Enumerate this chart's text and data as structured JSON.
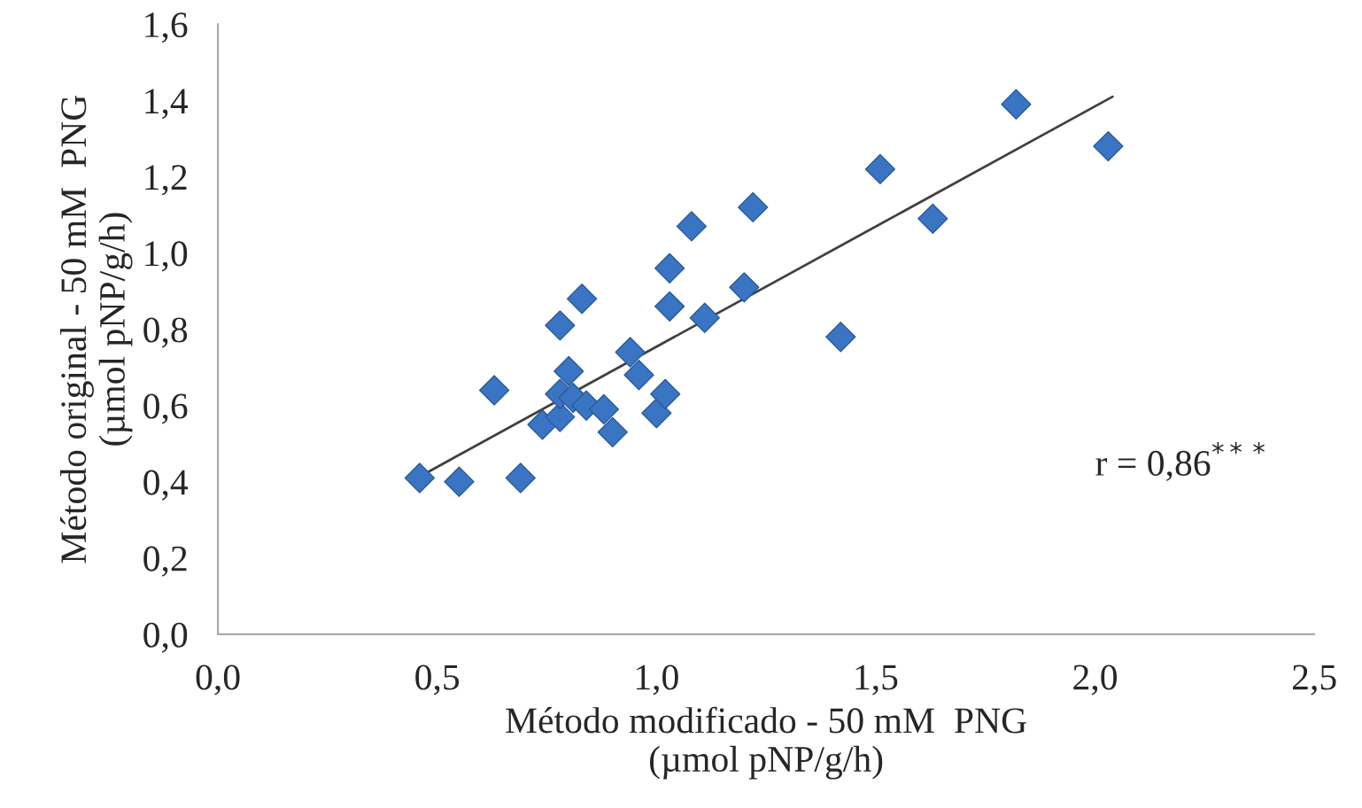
{
  "chart_data": {
    "type": "scatter",
    "xlabel": "Método modificado - 50 mM  PNG\n(µmol pNP/g/h)",
    "ylabel": "Método original - 50 mM  PNG\n(µmol pNP/g/h)",
    "annotations": [
      "r = 0,86$^{***}$"
    ],
    "grid": false,
    "xlim": [
      0,
      2.5
    ],
    "ylim": [
      0,
      1.6
    ],
    "xticks": [
      {
        "value": 0,
        "label": "0,0"
      },
      {
        "value": 0.5,
        "label": "0,5"
      },
      {
        "value": 1.0,
        "label": "1,0"
      },
      {
        "value": 1.5,
        "label": "1,5"
      },
      {
        "value": 2.0,
        "label": "2,0"
      },
      {
        "value": 2.5,
        "label": "2,5"
      }
    ],
    "yticks": [
      {
        "value": 0,
        "label": "0,0"
      },
      {
        "value": 0.2,
        "label": "0,2"
      },
      {
        "value": 0.4,
        "label": "0,4"
      },
      {
        "value": 0.6,
        "label": "0,6"
      },
      {
        "value": 0.8,
        "label": "0,8"
      },
      {
        "value": 1.0,
        "label": "1,0"
      },
      {
        "value": 1.2,
        "label": "1,2"
      },
      {
        "value": 1.4,
        "label": "1,4"
      },
      {
        "value": 1.6,
        "label": "1,6"
      }
    ],
    "series": [
      {
        "marker": "diamond",
        "color": "#3a75c4",
        "x": [
          0.46,
          0.55,
          0.69,
          0.63,
          0.74,
          0.78,
          0.78,
          0.81,
          0.8,
          0.84,
          0.88,
          0.9,
          0.78,
          0.83,
          0.94,
          0.96,
          1.0,
          1.02,
          1.03,
          1.03,
          1.08,
          1.22,
          1.11,
          1.2,
          1.42,
          1.51,
          1.63,
          1.82,
          2.03
        ],
        "values": [
          0.41,
          0.4,
          0.41,
          0.64,
          0.55,
          0.57,
          0.63,
          0.62,
          0.69,
          0.6,
          0.59,
          0.53,
          0.81,
          0.88,
          0.74,
          0.68,
          0.58,
          0.63,
          0.86,
          0.96,
          1.07,
          1.12,
          0.83,
          0.91,
          0.78,
          1.22,
          1.09,
          1.39,
          1.28
        ]
      },
      {
        "type": "line",
        "color": "#404040",
        "x": [
          0.47,
          2.04
        ],
        "values": [
          0.42,
          1.41
        ]
      }
    ]
  }
}
